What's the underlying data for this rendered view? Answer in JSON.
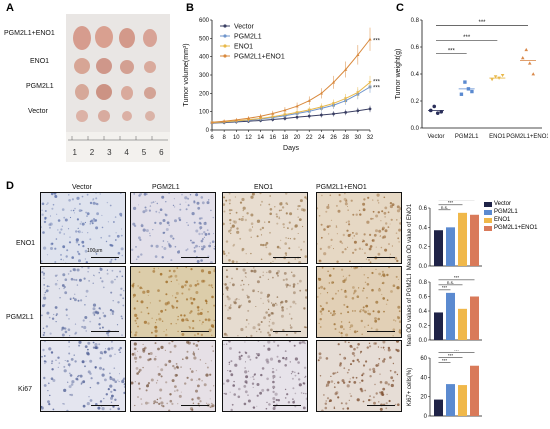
{
  "panels": {
    "a": "A",
    "b": "B",
    "c": "C",
    "d": "D"
  },
  "panelA": {
    "rows": [
      "PGM2L1+ENO1",
      "ENO1",
      "PGM2L1",
      "Vector"
    ],
    "ruler_ticks": [
      "1",
      "2",
      "3",
      "4",
      "5",
      "6"
    ]
  },
  "panelB": {
    "chart_data": {
      "type": "line",
      "x": [
        6,
        8,
        10,
        12,
        14,
        16,
        18,
        20,
        22,
        24,
        26,
        28,
        30,
        32
      ],
      "xlabel": "Days",
      "ylabel": "Tumor volume(mm³)",
      "ylim": [
        0,
        600
      ],
      "yticks": [
        "0",
        "100",
        "200",
        "300",
        "400",
        "500",
        "600"
      ],
      "xticks": [
        "6",
        "8",
        "10",
        "12",
        "14",
        "16",
        "18",
        "20",
        "22",
        "24",
        "26",
        "28",
        "30",
        "32"
      ],
      "legend_position": "top-left",
      "series": [
        {
          "name": "Vector",
          "color": "#3a3f63",
          "values": [
            38,
            40,
            44,
            48,
            52,
            57,
            63,
            70,
            76,
            82,
            88,
            96,
            105,
            115
          ]
        },
        {
          "name": "PGM2L1",
          "color": "#6f95cc",
          "values": [
            40,
            43,
            48,
            54,
            60,
            68,
            78,
            90,
            102,
            118,
            135,
            160,
            195,
            235
          ]
        },
        {
          "name": "ENO1",
          "color": "#e8b84a",
          "values": [
            40,
            44,
            50,
            56,
            63,
            72,
            84,
            96,
            110,
            126,
            145,
            172,
            205,
            260
          ]
        },
        {
          "name": "PGM2L1+ENO1",
          "color": "#d9893d",
          "values": [
            42,
            48,
            55,
            64,
            75,
            90,
            108,
            130,
            160,
            200,
            260,
            330,
            410,
            495
          ]
        }
      ],
      "annotations": [
        "***",
        "***",
        "***"
      ]
    }
  },
  "panelC": {
    "chart_data": {
      "type": "scatter",
      "categories": [
        "Vector",
        "PGM2L1",
        "ENO1",
        "PGM2L1+ENO1"
      ],
      "colors": [
        "#2a2f5a",
        "#5b8ad0",
        "#e8b84a",
        "#d9894a"
      ],
      "points": [
        [
          0.13,
          0.16,
          0.11,
          0.12
        ],
        [
          0.25,
          0.34,
          0.29,
          0.27
        ],
        [
          0.36,
          0.38,
          0.37,
          0.39
        ],
        [
          0.52,
          0.58,
          0.48,
          0.4
        ]
      ],
      "means": [
        0.13,
        0.29,
        0.37,
        0.5
      ],
      "ylabel": "Tumor weight(g)",
      "ylim": [
        0,
        0.8
      ],
      "yticks": [
        "0.0",
        "0.2",
        "0.4",
        "0.6",
        "0.8"
      ],
      "annotations": [
        "***",
        "***",
        "***"
      ]
    }
  },
  "panelD": {
    "columns": [
      "Vector",
      "PGM2L1",
      "ENO1",
      "PGM2L1+ENO1"
    ],
    "rows": [
      "ENO1",
      "PGM2L1",
      "Ki67"
    ],
    "scale_label": "100μm",
    "legend": [
      {
        "name": "Vector",
        "color": "#1f2347"
      },
      {
        "name": "PGM2L1",
        "color": "#5b8ad0"
      },
      {
        "name": "ENO1",
        "color": "#f0b84a"
      },
      {
        "name": "PGM2L1+ENO1",
        "color": "#d97a5a"
      }
    ],
    "bar_charts": [
      {
        "type": "bar",
        "ylabel": "Mean OD value of ENO1",
        "yticks": [
          "0.0",
          "0.2",
          "0.4",
          "0.6"
        ],
        "ylim": [
          0,
          0.6
        ],
        "values": [
          0.37,
          0.4,
          0.55,
          0.53
        ],
        "annotations": [
          "n.s.",
          "***",
          "***"
        ]
      },
      {
        "type": "bar",
        "ylabel": "Mean OD values of PGM2L1",
        "yticks": [
          "0.0",
          "0.2",
          "0.4",
          "0.6",
          "0.8"
        ],
        "ylim": [
          0,
          0.8
        ],
        "values": [
          0.38,
          0.65,
          0.43,
          0.6
        ],
        "annotations": [
          "***",
          "n.s.",
          "***"
        ]
      },
      {
        "type": "bar",
        "ylabel": "Ki67+ cells(%)",
        "yticks": [
          "0",
          "20",
          "40",
          "60"
        ],
        "ylim": [
          0,
          60
        ],
        "values": [
          17,
          33,
          32,
          52
        ],
        "annotations": [
          "***",
          "***",
          "***"
        ]
      }
    ]
  }
}
